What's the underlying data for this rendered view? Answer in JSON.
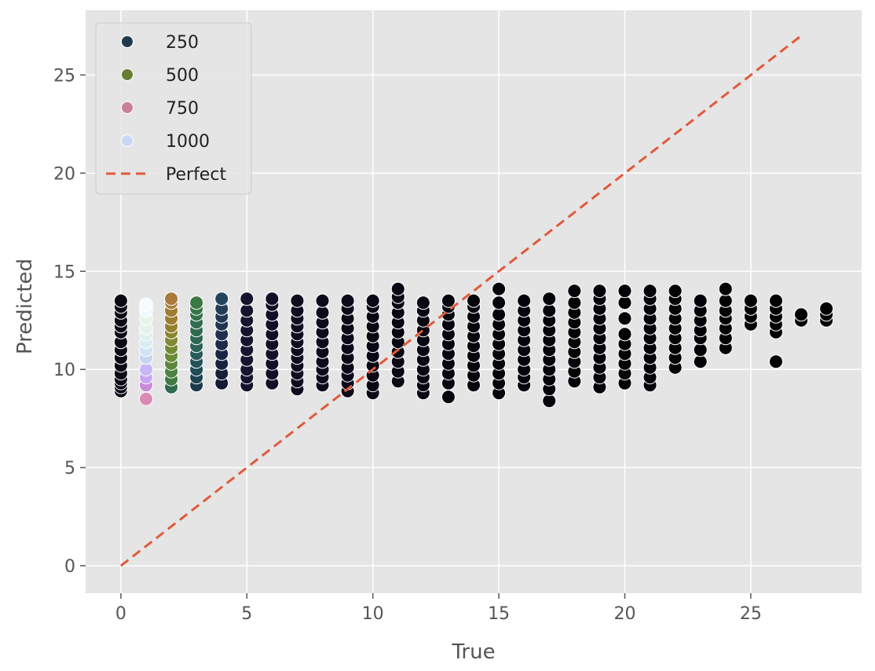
{
  "chart_data": {
    "type": "scatter",
    "title": "",
    "xlabel": "True",
    "ylabel": "Predicted",
    "xlim": [
      -1.4,
      29.4
    ],
    "ylim": [
      -1.4,
      28.3
    ],
    "xticks": [
      0,
      5,
      10,
      15,
      20,
      25
    ],
    "yticks": [
      0,
      5,
      10,
      15,
      20,
      25
    ],
    "grid": true,
    "legend_position": "top-left",
    "legend": [
      {
        "label": "250",
        "marker": "circle",
        "color": "#1f3a4d"
      },
      {
        "label": "500",
        "marker": "circle",
        "color": "#6b7c33"
      },
      {
        "label": "750",
        "marker": "circle",
        "color": "#c9809b"
      },
      {
        "label": "1000",
        "marker": "circle",
        "color": "#c8d8f5"
      },
      {
        "label": "Perfect",
        "marker": "dashed-line",
        "color": "#e05a3a"
      }
    ],
    "reference_line": {
      "name": "Perfect",
      "x": [
        0,
        27
      ],
      "y": [
        0,
        27
      ],
      "color": "#e05a3a"
    },
    "columns": [
      {
        "x": 0,
        "y": [
          8.9,
          9.1,
          9.3,
          9.5,
          9.8,
          10.2,
          10.6,
          11.0,
          11.4,
          11.9,
          12.2,
          12.5,
          12.9,
          13.2,
          13.5
        ],
        "colors": [
          "#0a0a14"
        ]
      },
      {
        "x": 1,
        "y": [
          8.5,
          9.2,
          9.6,
          10.0,
          10.6,
          11.0,
          11.4,
          11.8,
          12.1,
          12.6,
          13.0,
          13.3
        ],
        "colors": [
          "#d98bb5",
          "#c98bd6",
          "#c7a5ef",
          "#c5b8f2",
          "#c4d6f0",
          "#cfe3f4",
          "#d8eef5",
          "#dbf0ee",
          "#e4f4ec",
          "#e6f5ea",
          "#f0f8ff",
          "#f5fbff"
        ]
      },
      {
        "x": 2,
        "y": [
          9.1,
          9.5,
          9.9,
          10.3,
          10.7,
          11.1,
          11.5,
          11.9,
          12.2,
          12.6,
          13.0,
          13.4,
          13.6
        ],
        "colors": [
          "#2f6b4f",
          "#3f7a45",
          "#4d8240",
          "#5c873b",
          "#6a8a37",
          "#758a34",
          "#808833",
          "#8a8431",
          "#93802f",
          "#9a7d30",
          "#a07c33",
          "#a57b37",
          "#a97a3a"
        ]
      },
      {
        "x": 3,
        "y": [
          9.2,
          9.6,
          10.0,
          10.4,
          10.8,
          11.2,
          11.6,
          12.0,
          12.4,
          12.8,
          13.1,
          13.4
        ],
        "colors": [
          "#1b3b4a",
          "#1e4350",
          "#214b55",
          "#24535a",
          "#275b5a",
          "#2a6158",
          "#2c6655",
          "#2f6b52",
          "#316f4e",
          "#34724b",
          "#377547",
          "#3a7844"
        ]
      },
      {
        "x": 4,
        "y": [
          9.3,
          9.8,
          10.3,
          10.8,
          11.3,
          11.8,
          12.3,
          12.7,
          13.1,
          13.6
        ],
        "colors": [
          "#141a33",
          "#161e3a",
          "#182240",
          "#1a2645",
          "#1c2b4a",
          "#1e304e",
          "#203552",
          "#223a56",
          "#233f59",
          "#24435c"
        ]
      },
      {
        "x": 5,
        "y": [
          9.2,
          9.6,
          10.0,
          10.5,
          11.0,
          11.5,
          12.0,
          12.5,
          13.0,
          13.6
        ],
        "colors": [
          "#15142e"
        ]
      },
      {
        "x": 6,
        "y": [
          9.3,
          9.8,
          10.3,
          10.8,
          11.3,
          11.8,
          12.3,
          12.8,
          13.3,
          13.6
        ],
        "colors": [
          "#120f26"
        ]
      },
      {
        "x": 7,
        "y": [
          9.0,
          9.4,
          9.8,
          10.2,
          10.6,
          11.0,
          11.4,
          11.8,
          12.2,
          12.6,
          13.0,
          13.5
        ],
        "colors": [
          "#100c20"
        ]
      },
      {
        "x": 8,
        "y": [
          9.2,
          9.6,
          10.0,
          10.4,
          10.9,
          11.4,
          11.9,
          12.4,
          12.9,
          13.5
        ],
        "colors": [
          "#0e0a1b"
        ]
      },
      {
        "x": 9,
        "y": [
          8.9,
          9.3,
          9.7,
          10.1,
          10.6,
          11.1,
          11.6,
          12.1,
          12.6,
          13.1,
          13.5
        ],
        "colors": [
          "#0c0918"
        ]
      },
      {
        "x": 10,
        "y": [
          8.8,
          9.2,
          9.7,
          10.2,
          10.7,
          11.2,
          11.7,
          12.2,
          12.7,
          13.2,
          13.5
        ],
        "colors": [
          "#0a0814"
        ]
      },
      {
        "x": 11,
        "y": [
          9.4,
          9.9,
          10.4,
          10.9,
          11.4,
          11.9,
          12.4,
          12.9,
          13.4,
          13.7,
          14.1
        ],
        "colors": [
          "#090712"
        ]
      },
      {
        "x": 12,
        "y": [
          8.8,
          9.2,
          9.6,
          10.0,
          10.5,
          11.0,
          11.5,
          12.0,
          12.5,
          13.0,
          13.4
        ],
        "colors": [
          "#080610"
        ]
      },
      {
        "x": 13,
        "y": [
          8.6,
          9.3,
          9.8,
          10.3,
          10.8,
          11.3,
          11.8,
          12.3,
          12.8,
          13.2,
          13.5
        ],
        "colors": [
          "#07060e"
        ]
      },
      {
        "x": 14,
        "y": [
          9.2,
          9.7,
          10.2,
          10.7,
          11.2,
          11.7,
          12.2,
          12.7,
          13.2,
          13.5
        ],
        "colors": [
          "#06050c"
        ]
      },
      {
        "x": 15,
        "y": [
          8.8,
          9.3,
          9.8,
          10.3,
          10.8,
          11.3,
          11.8,
          12.3,
          12.8,
          13.4,
          14.1
        ],
        "colors": [
          "#06050b"
        ]
      },
      {
        "x": 16,
        "y": [
          9.2,
          9.6,
          10.0,
          10.5,
          11.0,
          11.5,
          12.0,
          12.5,
          13.0,
          13.5
        ],
        "colors": [
          "#05040a"
        ]
      },
      {
        "x": 17,
        "y": [
          8.4,
          9.0,
          9.5,
          10.0,
          10.5,
          11.0,
          11.5,
          12.0,
          12.5,
          13.0,
          13.6
        ],
        "colors": [
          "#050409"
        ]
      },
      {
        "x": 18,
        "y": [
          9.4,
          9.9,
          10.4,
          10.9,
          11.4,
          11.9,
          12.4,
          12.9,
          13.4,
          14.0
        ],
        "colors": [
          "#040308"
        ]
      },
      {
        "x": 19,
        "y": [
          9.1,
          9.6,
          10.1,
          10.6,
          11.1,
          11.6,
          12.1,
          12.6,
          13.1,
          13.6,
          14.0
        ],
        "colors": [
          "#040308"
        ]
      },
      {
        "x": 20,
        "y": [
          9.3,
          9.8,
          10.3,
          10.8,
          11.3,
          11.8,
          12.6,
          13.4,
          14.0
        ],
        "colors": [
          "#030307"
        ]
      },
      {
        "x": 21,
        "y": [
          9.2,
          9.6,
          10.1,
          10.6,
          11.1,
          11.6,
          12.1,
          12.6,
          13.1,
          13.6,
          14.0
        ],
        "colors": [
          "#030307"
        ]
      },
      {
        "x": 22,
        "y": [
          10.1,
          10.6,
          11.1,
          11.6,
          12.1,
          12.6,
          13.1,
          13.6,
          14.0
        ],
        "colors": [
          "#030306"
        ]
      },
      {
        "x": 23,
        "y": [
          10.4,
          11.0,
          11.6,
          12.0,
          12.5,
          13.0,
          13.5
        ],
        "colors": [
          "#020206"
        ]
      },
      {
        "x": 24,
        "y": [
          11.1,
          11.6,
          12.1,
          12.6,
          13.0,
          13.5,
          14.1
        ],
        "colors": [
          "#020205"
        ]
      },
      {
        "x": 25,
        "y": [
          12.3,
          12.7,
          13.1,
          13.5
        ],
        "colors": [
          "#020205"
        ]
      },
      {
        "x": 26,
        "y": [
          10.4,
          11.9,
          12.3,
          12.7,
          13.1,
          13.5
        ],
        "colors": [
          "#020205"
        ]
      },
      {
        "x": 27,
        "y": [
          12.5,
          12.8
        ],
        "colors": [
          "#020204"
        ]
      },
      {
        "x": 28,
        "y": [
          12.5,
          12.8,
          13.1
        ],
        "colors": [
          "#020204"
        ]
      }
    ]
  }
}
